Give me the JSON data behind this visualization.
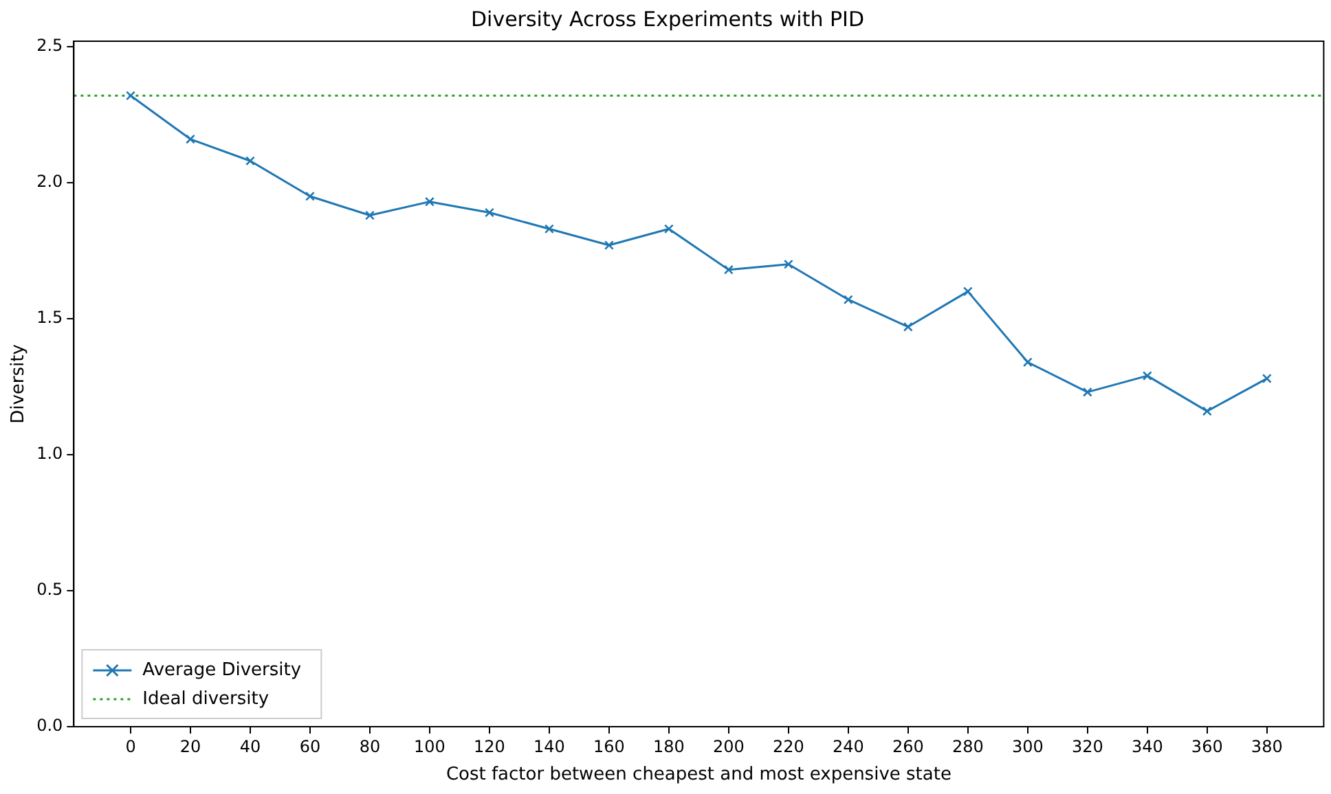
{
  "chart_data": {
    "type": "line",
    "title": "Diversity Across Experiments with PID",
    "xlabel": "Cost factor between cheapest and most expensive state",
    "ylabel": "Diversity",
    "x": [
      0,
      20,
      40,
      60,
      80,
      100,
      120,
      140,
      160,
      180,
      200,
      220,
      240,
      260,
      280,
      300,
      320,
      340,
      360,
      380
    ],
    "series": [
      {
        "name": "Average Diversity",
        "color": "#1f77b4",
        "values": [
          2.32,
          2.16,
          2.08,
          1.95,
          1.88,
          1.93,
          1.89,
          1.83,
          1.77,
          1.83,
          1.68,
          1.7,
          1.57,
          1.47,
          1.6,
          1.34,
          1.23,
          1.29,
          1.16,
          1.28
        ]
      }
    ],
    "ref_lines": [
      {
        "axis": "y",
        "value": 2.32,
        "label": "Ideal diversity",
        "color": "#2ca02c",
        "line_style": "dotted"
      }
    ],
    "xlim": [
      -19,
      399
    ],
    "xticks": [
      0,
      20,
      40,
      60,
      80,
      100,
      120,
      140,
      160,
      180,
      200,
      220,
      240,
      260,
      280,
      300,
      320,
      340,
      360,
      380
    ],
    "ylim": [
      0,
      2.52
    ],
    "yticks": [
      {
        "value": 0,
        "label": "0.0"
      },
      0.5,
      {
        "value": 1,
        "label": "1.0"
      },
      1.5,
      {
        "value": 2,
        "label": "2.0"
      },
      2.5
    ],
    "marker": "cross",
    "line_style": "solid",
    "grid": false,
    "legend": "bottom left"
  }
}
